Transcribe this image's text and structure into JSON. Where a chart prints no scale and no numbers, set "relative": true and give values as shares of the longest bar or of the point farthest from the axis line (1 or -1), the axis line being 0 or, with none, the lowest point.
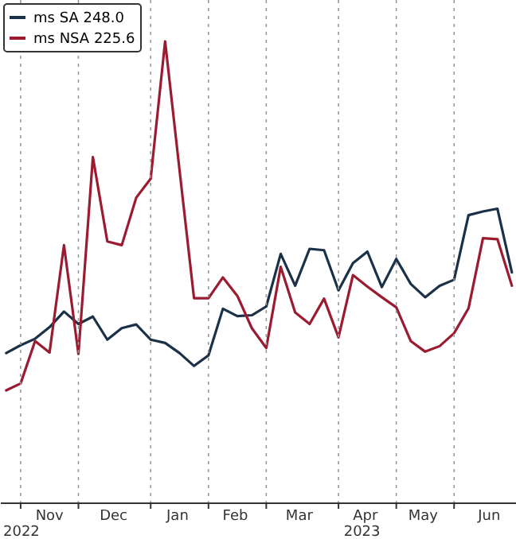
{
  "chart_data": {
    "type": "line",
    "relative": true,
    "grid": "x",
    "legend": "top left",
    "line_style": "solid",
    "marker": "none",
    "x": [
      "2022-10-29",
      "2022-11-05",
      "2022-11-12",
      "2022-11-19",
      "2022-11-26",
      "2022-12-03",
      "2022-12-10",
      "2022-12-17",
      "2022-12-24",
      "2022-12-31",
      "2023-01-07",
      "2023-01-14",
      "2023-01-21",
      "2023-01-28",
      "2023-02-04",
      "2023-02-11",
      "2023-02-18",
      "2023-02-25",
      "2023-03-04",
      "2023-03-11",
      "2023-03-18",
      "2023-03-25",
      "2023-04-01",
      "2023-04-08",
      "2023-04-15",
      "2023-04-22",
      "2023-04-29",
      "2023-05-06",
      "2023-05-13",
      "2023-05-20",
      "2023-05-27",
      "2023-06-03",
      "2023-06-10",
      "2023-06-17",
      "2023-06-24",
      "2023-07-01"
    ],
    "xlim": [
      "2022-10-26",
      "2023-07-03"
    ],
    "xticks": [
      {
        "value": "2022-11-05",
        "label": null
      },
      {
        "value": "2022-12-03",
        "label": null
      },
      {
        "value": "2023-01-07",
        "label": null
      },
      {
        "value": "2023-02-04",
        "label": null
      },
      {
        "value": "2023-03-04",
        "label": null
      },
      {
        "value": "2023-04-08",
        "label": null
      },
      {
        "value": "2023-05-06",
        "label": null
      },
      {
        "value": "2023-06-03",
        "label": null
      },
      {
        "value": "2022-11-19",
        "label": "Nov"
      },
      {
        "value": "2022-12-20",
        "label": "Dec"
      },
      {
        "value": "2023-01-20",
        "label": "Jan"
      },
      {
        "value": "2023-02-17",
        "label": "Feb"
      },
      {
        "value": "2023-03-20",
        "label": "Mar"
      },
      {
        "value": "2023-04-21",
        "label": "Apr"
      },
      {
        "value": "2023-05-19",
        "label": "May"
      },
      {
        "value": "2023-06-20",
        "label": "Jun"
      }
    ],
    "annotations": [
      "2022",
      "2023"
    ],
    "series": [
      {
        "name": "ms SA  248.0",
        "color": "#1a3148",
        "values": [
          0.324,
          0.341,
          0.355,
          0.38,
          0.414,
          0.387,
          0.403,
          0.353,
          0.378,
          0.386,
          0.353,
          0.346,
          0.324,
          0.296,
          0.319,
          0.42,
          0.404,
          0.406,
          0.425,
          0.539,
          0.47,
          0.55,
          0.547,
          0.46,
          0.519,
          0.544,
          0.467,
          0.528,
          0.474,
          0.445,
          0.47,
          0.483,
          0.623,
          0.631,
          0.637,
          0.499
        ]
      },
      {
        "name": "ms NSA 225.6",
        "color": "#9b1b30",
        "values": [
          0.243,
          0.258,
          0.35,
          0.325,
          0.558,
          0.322,
          0.749,
          0.566,
          0.558,
          0.661,
          0.702,
          1.0,
          0.72,
          0.443,
          0.443,
          0.488,
          0.448,
          0.378,
          0.335,
          0.511,
          0.412,
          0.387,
          0.442,
          0.358,
          0.493,
          0.468,
          0.445,
          0.423,
          0.35,
          0.327,
          0.339,
          0.367,
          0.421,
          0.573,
          0.571,
          0.47
        ]
      }
    ]
  }
}
